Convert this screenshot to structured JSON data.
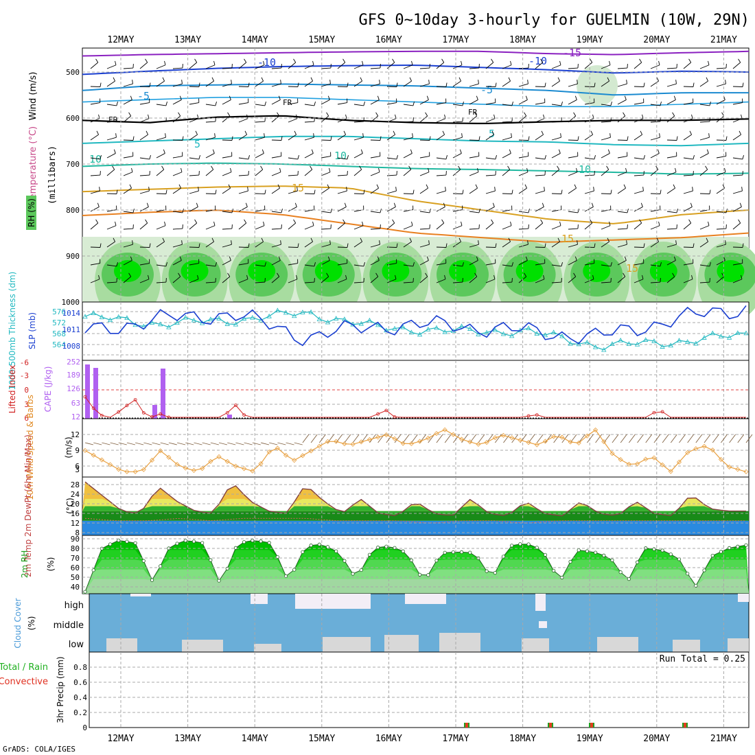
{
  "title": "GFS 0~10day 3-hourly for GUELMIN (10W, 29N)",
  "footer": "GrADS: COLA/IGES",
  "dates": [
    "12MAY",
    "13MAY",
    "14MAY",
    "15MAY",
    "16MAY",
    "17MAY",
    "18MAY",
    "19MAY",
    "20MAY",
    "21MAY"
  ],
  "colors": {
    "grid": "#b0b0b0",
    "rh_light": "#b8e8b0",
    "rh_mid": "#5cc85c",
    "rh_bright": "#00e000",
    "slp": "#1a3fd0",
    "thick": "#20b8c0",
    "cape": "#b060f0",
    "li": "#d02020",
    "wind": "#e8a040",
    "barb": "#806040",
    "temp_top": "#f0a030",
    "dew": "#30a030",
    "sky": "#2a8ae0",
    "cloud_bg": "#6aaed8",
    "cloud": "#d8d8d8",
    "precip": "#e04020"
  },
  "panels": {
    "upper_air": {
      "ylabel_wind": "Wind (m/s)",
      "ylabel_temp": "Temperature (°C)",
      "ylabel_mb": "(millibars)",
      "ylabel_rh": "RH (%)",
      "yticks": [
        "500",
        "600",
        "700",
        "800",
        "900",
        "1000"
      ]
    },
    "thickness_slp": {
      "ylabel_thick": "1000-500mb Thickness (dm)",
      "ylabel_slp": "SLP (mb)",
      "left_ticks": [
        "576",
        "572",
        "568",
        "564"
      ],
      "right_ticks": [
        "1014",
        "1011",
        "1008"
      ]
    },
    "cape_li": {
      "ylabel_li": "Lifted Index",
      "ylabel_cape": "CAPE (J/kg)",
      "left_ticks": [
        "-6",
        "-3",
        "0",
        "3",
        "6"
      ],
      "right_ticks": [
        "252",
        "189",
        "126",
        "63",
        "12"
      ]
    },
    "wind10m": {
      "ylabel": "10m Wind Speed & Barbs",
      "unit": "(m/s)",
      "ticks": [
        "12",
        "9",
        "6",
        "3"
      ]
    },
    "temp2m": {
      "ylabel": "2m Temp 2m DewPt (6hr Min/Max)",
      "unit": "(°C)",
      "ticks": [
        "28",
        "24",
        "20",
        "16",
        "12",
        "8"
      ]
    },
    "rh2m": {
      "ylabel": "2m RH",
      "unit": "(%)",
      "ticks": [
        "90",
        "80",
        "70",
        "60",
        "50",
        "40"
      ]
    },
    "cloud": {
      "ylabel": "Cloud Cover",
      "unit": "(%)",
      "levels": [
        "high",
        "middle",
        "low"
      ]
    },
    "precip": {
      "ylabel_total": "Total / Rain",
      "ylabel_conv": "Convective",
      "ylabel": "3hr Precip (mm)",
      "ticks": [
        "0.8",
        "0.6",
        "0.4",
        "0.2",
        "0"
      ],
      "run_total": "Run Total = 0.25"
    }
  },
  "contour_labels": {
    "wind": [
      "-15",
      "-10",
      "-10",
      "-5",
      "-5"
    ],
    "temp": [
      "FR",
      "FR",
      "FR",
      "5",
      "5",
      "10",
      "10",
      "10",
      "15",
      "15",
      "15"
    ]
  },
  "chart_data": [
    {
      "type": "area",
      "title": "RH (%) upper air",
      "x": [
        "12MAY",
        "13MAY",
        "14MAY",
        "15MAY",
        "16MAY",
        "17MAY",
        "18MAY",
        "19MAY",
        "20MAY",
        "21MAY"
      ],
      "series": [
        {
          "name": "low-level RH",
          "values": [
            90,
            90,
            90,
            85,
            88,
            90,
            92,
            90,
            88,
            86
          ]
        }
      ]
    },
    {
      "type": "line",
      "title": "",
      "x": [
        "12MAY",
        "13MAY",
        "14MAY",
        "15MAY",
        "16MAY",
        "17MAY",
        "18MAY",
        "19MAY",
        "20MAY",
        "21MAY"
      ],
      "series": [
        {
          "name": "SLP (mb)",
          "values": [
            1011,
            1013,
            1014,
            1010,
            1012,
            1012,
            1011,
            1010,
            1013,
            1015
          ]
        },
        {
          "name": "1000-500mb Thickness (dm)",
          "values": [
            574,
            572,
            573,
            575,
            571,
            570,
            570,
            566,
            567,
            569
          ]
        }
      ]
    },
    {
      "type": "line",
      "title": "",
      "x": [
        "12MAY",
        "13MAY",
        "14MAY",
        "15MAY",
        "16MAY",
        "17MAY",
        "18MAY",
        "19MAY",
        "20MAY",
        "21MAY"
      ],
      "series": [
        {
          "name": "Lifted Index",
          "values": [
            3,
            5,
            5,
            6,
            6,
            6,
            6,
            5,
            6,
            6
          ]
        },
        {
          "name": "CAPE (J/kg)",
          "values": [
            200,
            40,
            10,
            0,
            0,
            0,
            5,
            0,
            0,
            0
          ]
        }
      ]
    },
    {
      "type": "line",
      "title": "",
      "x": [
        "12MAY",
        "13MAY",
        "14MAY",
        "15MAY",
        "16MAY",
        "17MAY",
        "18MAY",
        "19MAY",
        "20MAY",
        "21MAY"
      ],
      "series": [
        {
          "name": "10m Wind Speed (m/s)",
          "values": [
            4.5,
            4.0,
            4.5,
            5.5,
            8.5,
            9.5,
            9.5,
            8.5,
            4.5,
            7.5
          ]
        }
      ]
    },
    {
      "type": "area",
      "title": "",
      "x": [
        "12MAY",
        "13MAY",
        "14MAY",
        "15MAY",
        "16MAY",
        "17MAY",
        "18MAY",
        "19MAY",
        "20MAY",
        "21MAY"
      ],
      "series": [
        {
          "name": "2m Temp (°C)",
          "values": [
            23,
            21,
            23,
            20,
            17,
            17,
            17,
            17,
            16,
            18
          ]
        },
        {
          "name": "2m DewPt (°C)",
          "values": [
            13,
            13,
            13,
            13,
            12,
            11,
            12,
            12,
            12,
            12
          ]
        }
      ]
    },
    {
      "type": "area",
      "title": "",
      "x": [
        "12MAY",
        "13MAY",
        "14MAY",
        "15MAY",
        "16MAY",
        "17MAY",
        "18MAY",
        "19MAY",
        "20MAY",
        "21MAY"
      ],
      "series": [
        {
          "name": "2m RH (%)",
          "values": [
            60,
            62,
            62,
            60,
            58,
            57,
            60,
            58,
            58,
            58
          ]
        }
      ]
    },
    {
      "type": "bar",
      "title": "",
      "x": [
        "17MAY",
        "18MAY",
        "19MAY",
        "20MAY"
      ],
      "series": [
        {
          "name": "3hr Precip (mm)",
          "values": [
            0.03,
            0.03,
            0.03,
            0.03
          ]
        }
      ],
      "ylim": [
        0,
        1
      ]
    }
  ]
}
